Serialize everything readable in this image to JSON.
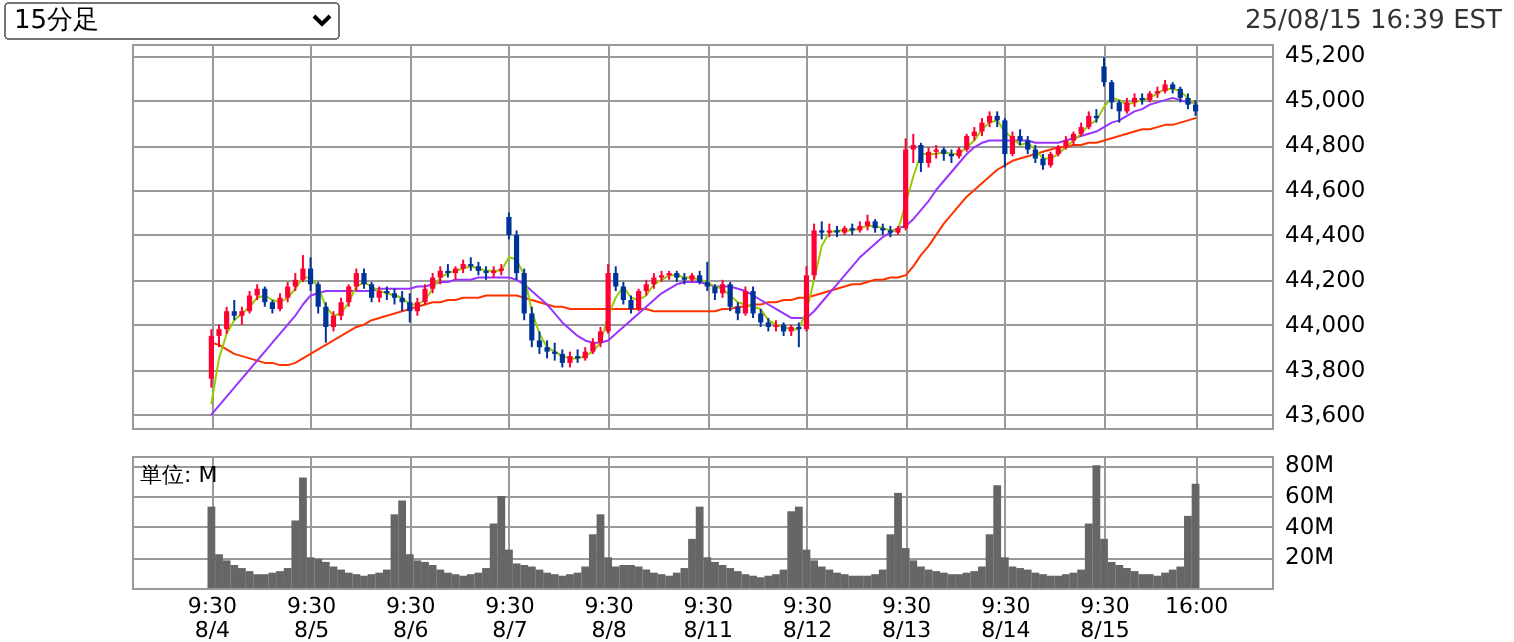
{
  "chart_data": [
    {
      "type": "candlestick",
      "annotations": [
        "15分足",
        "25/08/15 16:39 EST"
      ],
      "grid": true,
      "tick_labels": "y",
      "ylim": [
        43540,
        45250
      ],
      "yticks": [
        {
          "value": 43600,
          "label": "43,600"
        },
        {
          "value": 43800,
          "label": "43,800"
        },
        {
          "value": 44000,
          "label": "44,000"
        },
        {
          "value": 44200,
          "label": "44,200"
        },
        {
          "value": 44400,
          "label": "44,400"
        },
        {
          "value": 44600,
          "label": "44,600"
        },
        {
          "value": 44800,
          "label": "44,800"
        },
        {
          "value": 45000,
          "label": "45,000"
        },
        {
          "value": 45200,
          "label": "45,200"
        }
      ],
      "categories": [
        null,
        null,
        null,
        null,
        null,
        null,
        null,
        null,
        null,
        null,
        null,
        null,
        null,
        null,
        null,
        null,
        null,
        null,
        null,
        null,
        null,
        null,
        null,
        null,
        null,
        null,
        null,
        null,
        null,
        null,
        null,
        null,
        null,
        null,
        null,
        null,
        null,
        null,
        null,
        null,
        null,
        null,
        null,
        null,
        null,
        null,
        null,
        null,
        null,
        null,
        null,
        null,
        null,
        null,
        null,
        null,
        null,
        null,
        null,
        null,
        null,
        null,
        null,
        null,
        null,
        null,
        null,
        null,
        null,
        null,
        null,
        null,
        null,
        null,
        null,
        null,
        null,
        null,
        null,
        null,
        null,
        null,
        null,
        null,
        null,
        null,
        null,
        null,
        null,
        null,
        null,
        null,
        null,
        null,
        null,
        null,
        null,
        null,
        null,
        null,
        null,
        null,
        null,
        null,
        null,
        null,
        null,
        null,
        null,
        null,
        null,
        null,
        null,
        null,
        null,
        null,
        null,
        null,
        null,
        null,
        null,
        null,
        null,
        null,
        null,
        null,
        null,
        null,
        null,
        null
      ],
      "ohlc": [
        [
          43760,
          43980,
          43720,
          43950
        ],
        [
          43950,
          44000,
          43900,
          43980
        ],
        [
          43980,
          44080,
          43960,
          44060
        ],
        [
          44060,
          44110,
          44020,
          44040
        ],
        [
          44040,
          44080,
          44000,
          44060
        ],
        [
          44060,
          44150,
          44050,
          44130
        ],
        [
          44130,
          44180,
          44110,
          44160
        ],
        [
          44160,
          44170,
          44080,
          44100
        ],
        [
          44100,
          44110,
          44050,
          44070
        ],
        [
          44070,
          44140,
          44060,
          44120
        ],
        [
          44120,
          44190,
          44100,
          44170
        ],
        [
          44170,
          44230,
          44150,
          44200
        ],
        [
          44200,
          44310,
          44190,
          44250
        ],
        [
          44250,
          44300,
          44150,
          44180
        ],
        [
          44180,
          44190,
          44050,
          44080
        ],
        [
          44080,
          44100,
          43920,
          43990
        ],
        [
          43990,
          44060,
          43970,
          44040
        ],
        [
          44040,
          44120,
          44020,
          44100
        ],
        [
          44100,
          44180,
          44080,
          44170
        ],
        [
          44170,
          44250,
          44150,
          44230
        ],
        [
          44230,
          44250,
          44160,
          44180
        ],
        [
          44180,
          44190,
          44100,
          44120
        ],
        [
          44120,
          44170,
          44100,
          44150
        ],
        [
          44150,
          44170,
          44110,
          44140
        ],
        [
          44140,
          44160,
          44090,
          44120
        ],
        [
          44120,
          44150,
          44060,
          44100
        ],
        [
          44100,
          44140,
          44010,
          44060
        ],
        [
          44060,
          44120,
          44040,
          44100
        ],
        [
          44100,
          44180,
          44090,
          44160
        ],
        [
          44160,
          44230,
          44140,
          44210
        ],
        [
          44210,
          44260,
          44180,
          44240
        ],
        [
          44240,
          44270,
          44210,
          44230
        ],
        [
          44230,
          44260,
          44200,
          44250
        ],
        [
          44250,
          44290,
          44230,
          44270
        ],
        [
          44270,
          44300,
          44240,
          44260
        ],
        [
          44260,
          44280,
          44220,
          44240
        ],
        [
          44240,
          44260,
          44200,
          44230
        ],
        [
          44230,
          44260,
          44210,
          44240
        ],
        [
          44240,
          44270,
          44220,
          44250
        ],
        [
          44480,
          44500,
          44380,
          44400
        ],
        [
          44400,
          44420,
          44200,
          44230
        ],
        [
          44230,
          44250,
          44020,
          44050
        ],
        [
          44050,
          44080,
          43900,
          43930
        ],
        [
          43930,
          43970,
          43870,
          43900
        ],
        [
          43900,
          43930,
          43850,
          43880
        ],
        [
          43880,
          43920,
          43840,
          43870
        ],
        [
          43870,
          43890,
          43810,
          43830
        ],
        [
          43830,
          43880,
          43810,
          43860
        ],
        [
          43860,
          43890,
          43830,
          43850
        ],
        [
          43850,
          43900,
          43840,
          43880
        ],
        [
          43880,
          43940,
          43870,
          43920
        ],
        [
          43920,
          43990,
          43900,
          43970
        ],
        [
          43970,
          44270,
          43960,
          44230
        ],
        [
          44230,
          44260,
          44150,
          44170
        ],
        [
          44170,
          44190,
          44090,
          44110
        ],
        [
          44110,
          44130,
          44050,
          44070
        ],
        [
          44070,
          44160,
          44060,
          44150
        ],
        [
          44150,
          44200,
          44130,
          44180
        ],
        [
          44180,
          44230,
          44160,
          44210
        ],
        [
          44210,
          44240,
          44190,
          44220
        ],
        [
          44220,
          44240,
          44200,
          44230
        ],
        [
          44230,
          44240,
          44190,
          44210
        ],
        [
          44210,
          44230,
          44180,
          44200
        ],
        [
          44200,
          44230,
          44190,
          44220
        ],
        [
          44220,
          44240,
          44180,
          44190
        ],
        [
          44190,
          44280,
          44150,
          44170
        ],
        [
          44170,
          44180,
          44110,
          44140
        ],
        [
          44140,
          44200,
          44120,
          44180
        ],
        [
          44180,
          44190,
          44060,
          44080
        ],
        [
          44080,
          44100,
          44020,
          44050
        ],
        [
          44050,
          44170,
          44040,
          44150
        ],
        [
          44150,
          44170,
          44030,
          44050
        ],
        [
          44050,
          44070,
          43990,
          44010
        ],
        [
          44010,
          44030,
          43970,
          43990
        ],
        [
          43990,
          44020,
          43970,
          44000
        ],
        [
          44000,
          44010,
          43950,
          43970
        ],
        [
          43970,
          44000,
          43950,
          43990
        ],
        [
          43990,
          44010,
          43900,
          43980
        ],
        [
          43980,
          44260,
          43970,
          44220
        ],
        [
          44220,
          44450,
          44200,
          44420
        ],
        [
          44420,
          44460,
          44380,
          44410
        ],
        [
          44410,
          44450,
          44390,
          44420
        ],
        [
          44420,
          44440,
          44390,
          44410
        ],
        [
          44410,
          44440,
          44400,
          44430
        ],
        [
          44430,
          44450,
          44400,
          44420
        ],
        [
          44420,
          44460,
          44410,
          44440
        ],
        [
          44440,
          44490,
          44420,
          44460
        ],
        [
          44460,
          44470,
          44410,
          44430
        ],
        [
          44430,
          44450,
          44400,
          44420
        ],
        [
          44420,
          44440,
          44390,
          44410
        ],
        [
          44410,
          44440,
          44400,
          44430
        ],
        [
          44430,
          44830,
          44420,
          44780
        ],
        [
          44780,
          44850,
          44720,
          44800
        ],
        [
          44800,
          44810,
          44680,
          44720
        ],
        [
          44720,
          44790,
          44700,
          44770
        ],
        [
          44770,
          44800,
          44740,
          44780
        ],
        [
          44780,
          44790,
          44730,
          44760
        ],
        [
          44760,
          44780,
          44720,
          44750
        ],
        [
          44750,
          44790,
          44740,
          44780
        ],
        [
          44780,
          44850,
          44770,
          44840
        ],
        [
          44840,
          44880,
          44820,
          44860
        ],
        [
          44860,
          44920,
          44840,
          44900
        ],
        [
          44900,
          44950,
          44880,
          44930
        ],
        [
          44930,
          44950,
          44880,
          44910
        ],
        [
          44910,
          44920,
          44700,
          44760
        ],
        [
          44760,
          44860,
          44750,
          44840
        ],
        [
          44840,
          44870,
          44800,
          44820
        ],
        [
          44820,
          44840,
          44760,
          44780
        ],
        [
          44780,
          44800,
          44720,
          44740
        ],
        [
          44740,
          44760,
          44690,
          44710
        ],
        [
          44710,
          44770,
          44700,
          44760
        ],
        [
          44760,
          44800,
          44750,
          44790
        ],
        [
          44790,
          44840,
          44780,
          44820
        ],
        [
          44820,
          44860,
          44800,
          44850
        ],
        [
          44850,
          44900,
          44840,
          44880
        ],
        [
          44880,
          44950,
          44870,
          44930
        ],
        [
          44930,
          44960,
          44900,
          44920
        ],
        [
          45150,
          45190,
          45060,
          45080
        ],
        [
          45080,
          45090,
          44960,
          44990
        ],
        [
          44990,
          45000,
          44900,
          44950
        ],
        [
          44950,
          45010,
          44940,
          44990
        ],
        [
          44990,
          45030,
          44970,
          45010
        ],
        [
          45010,
          45030,
          44980,
          45000
        ],
        [
          45000,
          45040,
          44990,
          45030
        ],
        [
          45030,
          45060,
          45010,
          45040
        ],
        [
          45040,
          45090,
          45030,
          45070
        ],
        [
          45070,
          45080,
          45030,
          45050
        ],
        [
          45050,
          45060,
          44990,
          45010
        ],
        [
          45010,
          45030,
          44960,
          44980
        ],
        [
          44980,
          45000,
          44930,
          44950
        ]
      ],
      "colors": [
        "#ff0033",
        "#ff0033",
        "#ff0033",
        "#003399",
        "#ff0033",
        "#ff0033",
        "#ff0033",
        "#003399",
        "#003399",
        "#ff0033",
        "#ff0033",
        "#ff0033",
        "#ff0033",
        "#003399",
        "#003399",
        "#003399",
        "#ff0033",
        "#ff0033",
        "#ff0033",
        "#ff0033",
        "#003399",
        "#003399",
        "#ff0033",
        "#003399",
        "#003399",
        "#003399",
        "#003399",
        "#ff0033",
        "#ff0033",
        "#ff0033",
        "#ff0033",
        "#003399",
        "#ff0033",
        "#ff0033",
        "#003399",
        "#003399",
        "#003399",
        "#ff0033",
        "#ff0033",
        "#003399",
        "#003399",
        "#003399",
        "#003399",
        "#003399",
        "#003399",
        "#003399",
        "#003399",
        "#ff0033",
        "#003399",
        "#ff0033",
        "#ff0033",
        "#ff0033",
        "#ff0033",
        "#003399",
        "#003399",
        "#003399",
        "#ff0033",
        "#ff0033",
        "#ff0033",
        "#ff0033",
        "#ff0033",
        "#003399",
        "#003399",
        "#ff0033",
        "#003399",
        "#003399",
        "#003399",
        "#ff0033",
        "#003399",
        "#003399",
        "#ff0033",
        "#003399",
        "#003399",
        "#003399",
        "#ff0033",
        "#003399",
        "#ff0033",
        "#003399",
        "#ff0033",
        "#ff0033",
        "#003399",
        "#ff0033",
        "#003399",
        "#ff0033",
        "#003399",
        "#ff0033",
        "#ff0033",
        "#003399",
        "#003399",
        "#003399",
        "#ff0033",
        "#ff0033",
        "#ff0033",
        "#003399",
        "#ff0033",
        "#ff0033",
        "#003399",
        "#003399",
        "#ff0033",
        "#ff0033",
        "#ff0033",
        "#ff0033",
        "#ff0033",
        "#003399",
        "#003399",
        "#ff0033",
        "#003399",
        "#003399",
        "#003399",
        "#003399",
        "#ff0033",
        "#ff0033",
        "#ff0033",
        "#ff0033",
        "#ff0033",
        "#ff0033",
        "#003399",
        "#003399",
        "#003399",
        "#003399",
        "#ff0033",
        "#ff0033",
        "#003399",
        "#ff0033",
        "#ff0033",
        "#ff0033",
        "#003399",
        "#003399",
        "#003399",
        "#003399"
      ],
      "series": [
        {
          "type": "line",
          "color": "#ff3300",
          "values": [
            43920,
            43910,
            43890,
            43870,
            43860,
            43850,
            43840,
            43830,
            43830,
            43820,
            43820,
            43830,
            43850,
            43870,
            43890,
            43910,
            43930,
            43950,
            43970,
            43990,
            44000,
            44020,
            44030,
            44040,
            44050,
            44060,
            44070,
            44080,
            44090,
            44100,
            44100,
            44110,
            44110,
            44120,
            44120,
            44120,
            44130,
            44130,
            44130,
            44130,
            44130,
            44120,
            44110,
            44100,
            44090,
            44080,
            44080,
            44070,
            44070,
            44070,
            44070,
            44070,
            44070,
            44070,
            44070,
            44070,
            44070,
            44070,
            44060,
            44060,
            44060,
            44060,
            44060,
            44060,
            44060,
            44060,
            44060,
            44070,
            44070,
            44080,
            44080,
            44090,
            44090,
            44100,
            44100,
            44110,
            44110,
            44120,
            44120,
            44130,
            44140,
            44150,
            44160,
            44170,
            44180,
            44180,
            44190,
            44200,
            44200,
            44210,
            44210,
            44220,
            44260,
            44310,
            44350,
            44400,
            44450,
            44490,
            44530,
            44570,
            44600,
            44630,
            44660,
            44690,
            44710,
            44730,
            44740,
            44750,
            44760,
            44770,
            44780,
            44790,
            44790,
            44800,
            44800,
            44810,
            44810,
            44820,
            44830,
            44840,
            44850,
            44860,
            44870,
            44870,
            44880,
            44890,
            44890,
            44900,
            44910,
            44920
          ]
        },
        {
          "type": "line",
          "color": "#9933ff",
          "values": [
            43600,
            43640,
            43680,
            43720,
            43760,
            43800,
            43840,
            43880,
            43920,
            43960,
            44000,
            44040,
            44090,
            44130,
            44140,
            44150,
            44150,
            44150,
            44150,
            44150,
            44150,
            44150,
            44160,
            44160,
            44160,
            44160,
            44160,
            44170,
            44170,
            44180,
            44190,
            44190,
            44200,
            44200,
            44200,
            44210,
            44210,
            44210,
            44210,
            44210,
            44200,
            44180,
            44150,
            44120,
            44090,
            44050,
            44010,
            43980,
            43950,
            43930,
            43920,
            43920,
            43930,
            43960,
            43990,
            44020,
            44050,
            44080,
            44110,
            44140,
            44160,
            44180,
            44190,
            44190,
            44190,
            44180,
            44170,
            44170,
            44170,
            44160,
            44150,
            44130,
            44110,
            44090,
            44070,
            44050,
            44030,
            44030,
            44030,
            44060,
            44100,
            44140,
            44180,
            44220,
            44260,
            44300,
            44330,
            44360,
            44390,
            44410,
            44430,
            44440,
            44470,
            44510,
            44550,
            44600,
            44640,
            44680,
            44720,
            44760,
            44790,
            44810,
            44820,
            44820,
            44820,
            44820,
            44820,
            44820,
            44810,
            44810,
            44810,
            44810,
            44820,
            44830,
            44840,
            44850,
            44860,
            44880,
            44900,
            44910,
            44930,
            44950,
            44960,
            44980,
            44990,
            45000,
            45010,
            45000,
            44990,
            44990
          ]
        },
        {
          "type": "line",
          "color": "#99cc00",
          "values": [
            43650,
            43850,
            43960,
            44020,
            44050,
            44080,
            44120,
            44130,
            44110,
            44100,
            44120,
            44160,
            44210,
            44210,
            44170,
            44080,
            44040,
            44050,
            44100,
            44170,
            44190,
            44170,
            44150,
            44140,
            44130,
            44120,
            44090,
            44090,
            44110,
            44160,
            44210,
            44230,
            44240,
            44250,
            44260,
            44250,
            44240,
            44240,
            44240,
            44300,
            44290,
            44220,
            44060,
            43960,
            43900,
            43880,
            43860,
            43850,
            43850,
            43860,
            43880,
            43920,
            44040,
            44120,
            44170,
            44120,
            44110,
            44130,
            44180,
            44200,
            44220,
            44220,
            44210,
            44210,
            44200,
            44190,
            44170,
            44160,
            44130,
            44100,
            44090,
            44080,
            44070,
            44020,
            44000,
            43990,
            43980,
            43980,
            44060,
            44200,
            44350,
            44410,
            44420,
            44420,
            44420,
            44430,
            44440,
            44440,
            44430,
            44420,
            44420,
            44540,
            44660,
            44760,
            44760,
            44760,
            44770,
            44760,
            44760,
            44790,
            44820,
            44870,
            44900,
            44910,
            44860,
            44830,
            44800,
            44810,
            44780,
            44740,
            44740,
            44760,
            44790,
            44820,
            44850,
            44890,
            44910,
            44970,
            45010,
            45000,
            44980,
            44990,
            45000,
            45010,
            45030,
            45050,
            45050,
            45040,
            45010,
            44980
          ]
        }
      ]
    },
    {
      "type": "bar",
      "annotations": [
        "単位: M"
      ],
      "grid": true,
      "color": "#666666",
      "ylim": [
        0,
        86
      ],
      "yticks": [
        {
          "value": 20,
          "label": "20M"
        },
        {
          "value": 40,
          "label": "40M"
        },
        {
          "value": 60,
          "label": "60M"
        },
        {
          "value": 80,
          "label": "80M"
        }
      ],
      "categories": [
        "9:30\n8/4",
        null,
        null,
        null,
        null,
        null,
        null,
        null,
        null,
        null,
        null,
        null,
        null,
        "9:30\n8/5",
        null,
        null,
        null,
        null,
        null,
        null,
        null,
        null,
        null,
        null,
        null,
        null,
        "9:30\n8/6",
        null,
        null,
        null,
        null,
        null,
        null,
        null,
        null,
        null,
        null,
        null,
        null,
        "9:30\n8/7",
        null,
        null,
        null,
        null,
        null,
        null,
        null,
        null,
        null,
        null,
        null,
        null,
        "9:30\n8/8",
        null,
        null,
        null,
        null,
        null,
        null,
        null,
        null,
        null,
        null,
        null,
        null,
        "9:30\n8/11",
        null,
        null,
        null,
        null,
        null,
        null,
        null,
        null,
        null,
        null,
        null,
        null,
        "9:30\n8/12",
        null,
        null,
        null,
        null,
        null,
        null,
        null,
        null,
        null,
        null,
        null,
        null,
        "9:30\n8/13",
        null,
        null,
        null,
        null,
        null,
        null,
        null,
        null,
        null,
        null,
        null,
        null,
        "9:30\n8/14",
        null,
        null,
        null,
        null,
        null,
        null,
        null,
        null,
        null,
        null,
        null,
        null,
        "9:30\n8/15",
        null,
        null,
        null,
        null,
        null,
        null,
        null,
        null,
        null,
        null,
        null,
        "16:00"
      ],
      "values": [
        53,
        22,
        18,
        15,
        13,
        11,
        9,
        9,
        10,
        11,
        13,
        44,
        72,
        20,
        19,
        17,
        14,
        12,
        10,
        9,
        8,
        9,
        10,
        12,
        48,
        57,
        22,
        18,
        17,
        15,
        12,
        10,
        9,
        8,
        9,
        10,
        13,
        42,
        60,
        25,
        16,
        15,
        14,
        12,
        10,
        9,
        8,
        9,
        10,
        14,
        35,
        48,
        20,
        14,
        15,
        15,
        14,
        12,
        10,
        9,
        8,
        10,
        13,
        32,
        53,
        20,
        17,
        15,
        13,
        11,
        9,
        8,
        7,
        8,
        9,
        12,
        50,
        53,
        25,
        18,
        14,
        12,
        10,
        9,
        8,
        8,
        8,
        9,
        12,
        35,
        62,
        26,
        18,
        14,
        12,
        11,
        10,
        9,
        9,
        10,
        11,
        14,
        35,
        67,
        20,
        14,
        13,
        12,
        10,
        9,
        8,
        8,
        9,
        10,
        12,
        42,
        80,
        32,
        17,
        15,
        13,
        11,
        9,
        9,
        8,
        10,
        12,
        14,
        47,
        68
      ]
    }
  ]
}
